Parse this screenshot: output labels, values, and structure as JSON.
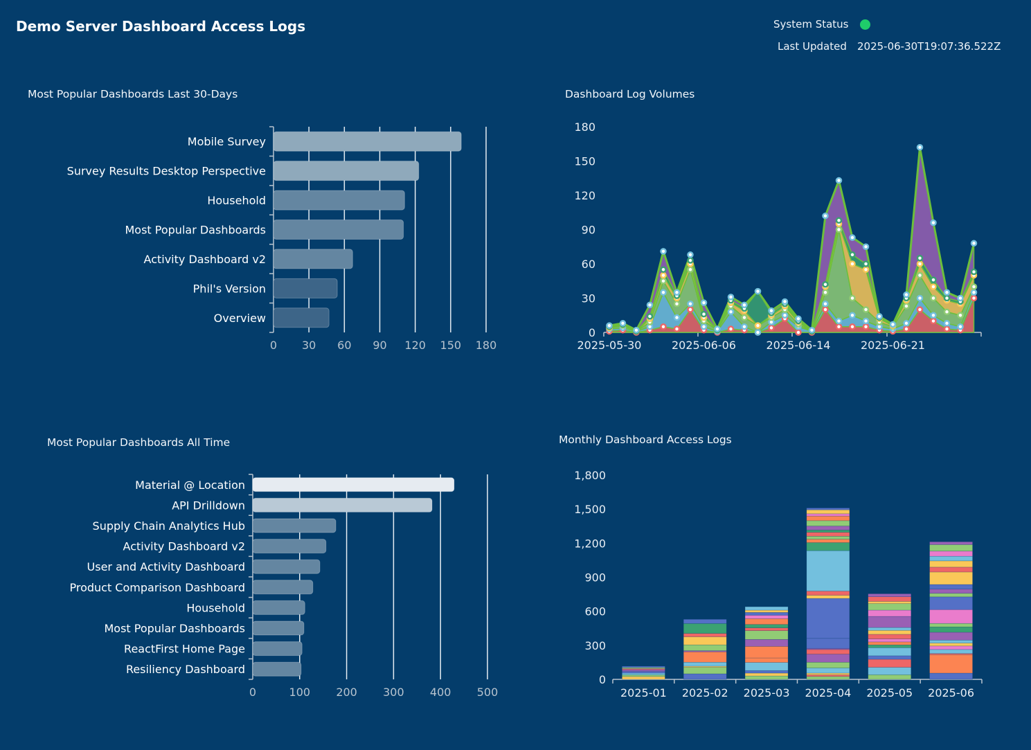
{
  "header": {
    "title": "Demo Server Dashboard Access Logs",
    "status_label": "System Status",
    "status_color": "#1fcc6a",
    "updated_label": "Last Updated",
    "updated_value": "2025-06-30T19:07:36.522Z"
  },
  "theme": {
    "background": "#043d6b",
    "palette": [
      "#5470c6",
      "#91cc75",
      "#fac858",
      "#ee6666",
      "#73c0de",
      "#3ba272",
      "#fc8452",
      "#9a60b4",
      "#ea7ccc"
    ]
  },
  "chart_data": [
    {
      "type": "bar",
      "orientation": "horizontal",
      "title": "Most Popular Dashboards Last 30-Days",
      "categories": [
        "Mobile Survey",
        "Survey Results Desktop Perspective",
        "Household",
        "Most Popular Dashboards",
        "Activity Dashboard v2",
        "Phil's Version",
        "Overview"
      ],
      "values": [
        159,
        123,
        111,
        110,
        67,
        54,
        47
      ],
      "bar_colors": [
        "#8fa9bb",
        "#8fa9bb",
        "#6486a1",
        "#6486a1",
        "#6486a1",
        "#3d6588",
        "#3d6588"
      ],
      "xlim": [
        0,
        180
      ],
      "xticks": [
        "0",
        "30",
        "60",
        "90",
        "120",
        "150",
        "180"
      ],
      "grid": true
    },
    {
      "type": "area",
      "stacked": true,
      "title": "Dashboard Log Volumes",
      "x": [
        "2025-05-30",
        "2025-05-31",
        "2025-06-01",
        "2025-06-02",
        "2025-06-03",
        "2025-06-04",
        "2025-06-05",
        "2025-06-06",
        "2025-06-07",
        "2025-06-08",
        "2025-06-09",
        "2025-06-10",
        "2025-06-11",
        "2025-06-12",
        "2025-06-14",
        "2025-06-15",
        "2025-06-16",
        "2025-06-17",
        "2025-06-18",
        "2025-06-19",
        "2025-06-20",
        "2025-06-21",
        "2025-06-22",
        "2025-06-23",
        "2025-06-24",
        "2025-06-25",
        "2025-06-26",
        "2025-06-27"
      ],
      "xtick_labels": [
        "2025-05-30",
        "2025-06-06",
        "2025-06-14",
        "2025-06-21"
      ],
      "ylim": [
        0,
        180
      ],
      "yticks": [
        "0",
        "30",
        "60",
        "90",
        "120",
        "150",
        "180"
      ],
      "grid": false,
      "series": [
        {
          "color": "#ee6666",
          "values": [
            1,
            2,
            0,
            2,
            5,
            3,
            20,
            2,
            0,
            3,
            2,
            0,
            4,
            12,
            0,
            0,
            20,
            5,
            5,
            5,
            2,
            1,
            3,
            20,
            10,
            3,
            2,
            30
          ]
        },
        {
          "color": "#73c0de",
          "values": [
            2,
            2,
            1,
            3,
            30,
            10,
            5,
            3,
            1,
            15,
            3,
            0,
            5,
            3,
            5,
            1,
            5,
            5,
            10,
            5,
            3,
            2,
            5,
            10,
            5,
            5,
            3,
            5
          ]
        },
        {
          "color": "#91cc75",
          "values": [
            1,
            2,
            0,
            4,
            10,
            12,
            30,
            5,
            1,
            5,
            8,
            6,
            4,
            5,
            2,
            0,
            10,
            80,
            15,
            10,
            4,
            2,
            15,
            20,
            15,
            10,
            10,
            5
          ]
        },
        {
          "color": "#fac858",
          "values": [
            0,
            1,
            0,
            3,
            5,
            5,
            5,
            3,
            0,
            3,
            6,
            0,
            2,
            3,
            2,
            0,
            5,
            5,
            30,
            35,
            3,
            1,
            5,
            10,
            10,
            10,
            10,
            10
          ]
        },
        {
          "color": "#3ba272",
          "values": [
            1,
            0,
            0,
            2,
            5,
            2,
            3,
            3,
            0,
            2,
            2,
            30,
            2,
            2,
            1,
            0,
            2,
            3,
            8,
            5,
            1,
            1,
            2,
            5,
            6,
            2,
            2,
            3
          ]
        },
        {
          "color": "#9a60b4",
          "values": [
            1,
            1,
            1,
            10,
            16,
            3,
            5,
            10,
            1,
            3,
            3,
            0,
            2,
            2,
            2,
            1,
            60,
            35,
            15,
            15,
            1,
            0,
            3,
            97,
            50,
            5,
            3,
            25
          ]
        }
      ]
    },
    {
      "type": "bar",
      "orientation": "horizontal",
      "title": "Most Popular Dashboards All Time",
      "categories": [
        "Material @ Location",
        "API Drilldown",
        "Supply Chain Analytics Hub",
        "Activity Dashboard v2",
        "User and Activity Dashboard",
        "Product Comparison Dashboard",
        "Household",
        "Most Popular Dashboards",
        "ReactFirst Home Page",
        "Resiliency Dashboard"
      ],
      "values": [
        429,
        382,
        177,
        156,
        143,
        128,
        111,
        109,
        105,
        103
      ],
      "bar_colors": [
        "#e6ebf1",
        "#b9c9d6",
        "#6486a1",
        "#6486a1",
        "#6486a1",
        "#6486a1",
        "#6486a1",
        "#6486a1",
        "#6486a1",
        "#6486a1"
      ],
      "xlim": [
        0,
        500
      ],
      "xticks": [
        "0",
        "100",
        "200",
        "300",
        "400",
        "500"
      ],
      "grid": true
    },
    {
      "type": "bar",
      "stacked": true,
      "title": "Monthly Dashboard Access Logs",
      "categories": [
        "2025-01",
        "2025-02",
        "2025-03",
        "2025-04",
        "2025-05",
        "2025-06"
      ],
      "ylim": [
        0,
        1800
      ],
      "yticks": [
        "0",
        "300",
        "600",
        "900",
        "1,200",
        "1,500",
        "1,800"
      ],
      "grid": false,
      "stacks": [
        [
          [
            2,
            25
          ],
          [
            1,
            15
          ],
          [
            4,
            15
          ],
          [
            0,
            15
          ],
          [
            7,
            15
          ],
          [
            3,
            10
          ],
          [
            1,
            10
          ],
          [
            0,
            11
          ]
        ],
        [
          [
            0,
            49
          ],
          [
            1,
            57
          ],
          [
            2,
            10
          ],
          [
            4,
            35
          ],
          [
            6,
            92
          ],
          [
            7,
            10
          ],
          [
            1,
            51
          ],
          [
            2,
            71
          ],
          [
            3,
            30
          ],
          [
            5,
            87
          ],
          [
            0,
            37
          ]
        ],
        [
          [
            1,
            30
          ],
          [
            2,
            25
          ],
          [
            0,
            23
          ],
          [
            4,
            71
          ],
          [
            6,
            40
          ],
          [
            6,
            102
          ],
          [
            7,
            61
          ],
          [
            1,
            77
          ],
          [
            3,
            25
          ],
          [
            5,
            30
          ],
          [
            6,
            51
          ],
          [
            8,
            30
          ],
          [
            0,
            25
          ],
          [
            2,
            20
          ],
          [
            4,
            30
          ]
        ],
        [
          [
            1,
            25
          ],
          [
            3,
            15
          ],
          [
            2,
            15
          ],
          [
            4,
            45
          ],
          [
            1,
            51
          ],
          [
            7,
            71
          ],
          [
            3,
            41
          ],
          [
            7,
            10
          ],
          [
            0,
            88
          ],
          [
            0,
            352
          ],
          [
            2,
            28
          ],
          [
            3,
            37
          ],
          [
            4,
            356
          ],
          [
            5,
            71
          ],
          [
            6,
            30
          ],
          [
            1,
            26
          ],
          [
            3,
            35
          ],
          [
            5,
            20
          ],
          [
            7,
            35
          ],
          [
            1,
            47
          ],
          [
            6,
            41
          ],
          [
            8,
            20
          ],
          [
            2,
            35
          ],
          [
            0,
            16
          ]
        ],
        [
          [
            1,
            41
          ],
          [
            4,
            65
          ],
          [
            3,
            71
          ],
          [
            0,
            31
          ],
          [
            4,
            71
          ],
          [
            5,
            25
          ],
          [
            6,
            26
          ],
          [
            8,
            26
          ],
          [
            3,
            41
          ],
          [
            2,
            35
          ],
          [
            4,
            25
          ],
          [
            7,
            98
          ],
          [
            8,
            55
          ],
          [
            1,
            57
          ],
          [
            2,
            20
          ],
          [
            3,
            41
          ],
          [
            7,
            26
          ]
        ],
        [
          [
            0,
            55
          ],
          [
            6,
            163
          ],
          [
            3,
            10
          ],
          [
            4,
            35
          ],
          [
            8,
            31
          ],
          [
            2,
            26
          ],
          [
            4,
            26
          ],
          [
            7,
            69
          ],
          [
            5,
            47
          ],
          [
            1,
            31
          ],
          [
            8,
            122
          ],
          [
            0,
            112
          ],
          [
            1,
            31
          ],
          [
            7,
            37
          ],
          [
            0,
            41
          ],
          [
            2,
            110
          ],
          [
            3,
            43
          ],
          [
            2,
            55
          ],
          [
            4,
            41
          ],
          [
            8,
            45
          ],
          [
            1,
            57
          ],
          [
            7,
            25
          ]
        ]
      ]
    }
  ]
}
